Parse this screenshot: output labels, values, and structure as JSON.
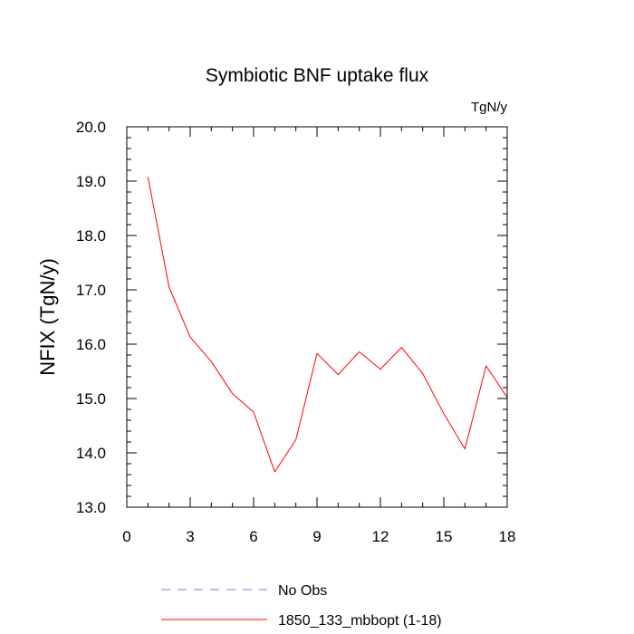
{
  "chart_data": {
    "type": "line",
    "title": "Symbiotic BNF uptake flux",
    "units": "TgN/y",
    "ylabel": "NFIX  (TgN/y)",
    "xlabel": "",
    "xlim": [
      0,
      18
    ],
    "ylim": [
      13.0,
      20.0
    ],
    "x_ticks": [
      0,
      3,
      6,
      9,
      12,
      15,
      18
    ],
    "x_tick_labels": [
      "0",
      "3",
      "6",
      "9",
      "12",
      "15",
      "18"
    ],
    "y_ticks": [
      13.0,
      14.0,
      15.0,
      16.0,
      17.0,
      18.0,
      19.0,
      20.0
    ],
    "y_tick_labels": [
      "13.0",
      "14.0",
      "15.0",
      "16.0",
      "17.0",
      "18.0",
      "19.0",
      "20.0"
    ],
    "grid": false,
    "legend_position": "bottom",
    "series": [
      {
        "name": "1850_133_mbbopt (1-18)",
        "color": "#ff0000",
        "style": "solid",
        "x": [
          1,
          2,
          3,
          4,
          5,
          6,
          7,
          8,
          9,
          10,
          11,
          12,
          13,
          14,
          15,
          16,
          17,
          18
        ],
        "y": [
          19.08,
          17.05,
          16.13,
          15.68,
          15.09,
          14.75,
          13.65,
          14.24,
          15.83,
          15.44,
          15.86,
          15.54,
          15.94,
          15.46,
          14.72,
          14.07,
          15.6,
          15.02
        ]
      }
    ],
    "legend": [
      {
        "label": "No Obs",
        "color": "#7777ff",
        "style": "dashed"
      },
      {
        "label": "1850_133_mbbopt (1-18)",
        "color": "#ff0000",
        "style": "solid"
      }
    ]
  }
}
